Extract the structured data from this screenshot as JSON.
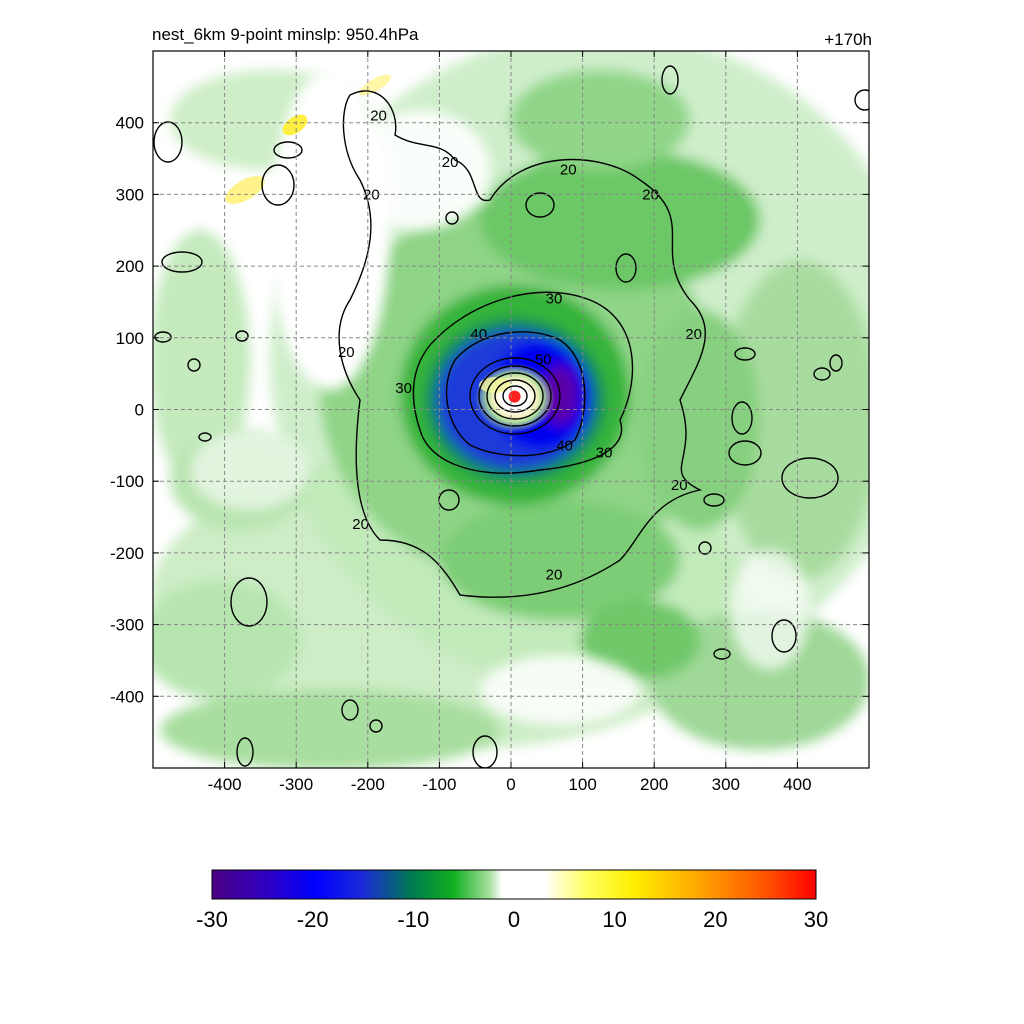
{
  "chart_data": {
    "type": "heatmap",
    "title_left": "nest_6km  9-point minslp: 950.4hPa",
    "title_right": "+170h",
    "x_ticks": [
      "-400",
      "-300",
      "-200",
      "-100",
      "0",
      "100",
      "200",
      "300",
      "400"
    ],
    "y_ticks": [
      "400",
      "300",
      "200",
      "100",
      "0",
      "-100",
      "-200",
      "-300",
      "-400"
    ],
    "xlim": [
      -500,
      500
    ],
    "ylim": [
      -500,
      500
    ],
    "grid": true,
    "grid_style": "dashed",
    "center_marker": {
      "x": 5,
      "y": 18,
      "color": "#ff2020"
    },
    "colorbar": {
      "range": [
        -30,
        30
      ],
      "tick_labels": [
        "-30",
        "-20",
        "-10",
        "0",
        "10",
        "20",
        "30"
      ],
      "orientation": "horizontal",
      "placement": "bottom"
    },
    "contour_labels": [
      {
        "text": "20",
        "x": -185,
        "y": 410
      },
      {
        "text": "20",
        "x": -195,
        "y": 300
      },
      {
        "text": "20",
        "x": -85,
        "y": 345
      },
      {
        "text": "20",
        "x": 80,
        "y": 335
      },
      {
        "text": "20",
        "x": 195,
        "y": 300
      },
      {
        "text": "20",
        "x": 255,
        "y": 105
      },
      {
        "text": "20",
        "x": -230,
        "y": 80
      },
      {
        "text": "20",
        "x": 235,
        "y": -105
      },
      {
        "text": "20",
        "x": -210,
        "y": -160
      },
      {
        "text": "20",
        "x": 60,
        "y": -230
      },
      {
        "text": "30",
        "x": 60,
        "y": 155
      },
      {
        "text": "30",
        "x": -150,
        "y": 30
      },
      {
        "text": "30",
        "x": 130,
        "y": -60
      },
      {
        "text": "40",
        "x": -45,
        "y": 105
      },
      {
        "text": "40",
        "x": 75,
        "y": -50
      },
      {
        "text": "50",
        "x": 45,
        "y": 70
      }
    ]
  }
}
